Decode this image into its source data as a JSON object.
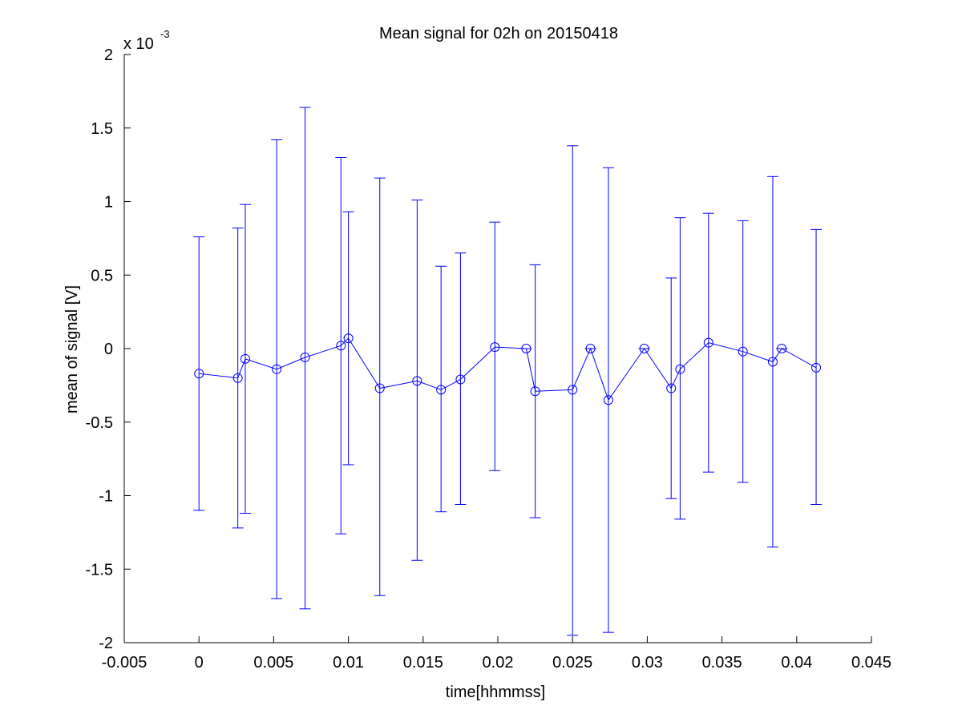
{
  "chart_data": {
    "type": "line",
    "title": "Mean signal for 02h on 20150418",
    "xlabel": "time[hhmmss]",
    "ylabel": "mean of signal [V]",
    "y_multiplier": {
      "base": "x 10",
      "exponent": "-3"
    },
    "xlim": [
      -0.005,
      0.045
    ],
    "ylim": [
      -2,
      2
    ],
    "x_ticks": [
      "-0.005",
      "0",
      "0.005",
      "0.01",
      "0.015",
      "0.02",
      "0.025",
      "0.03",
      "0.035",
      "0.04",
      "0.045"
    ],
    "y_ticks": [
      "-2",
      "-1.5",
      "-1",
      "-0.5",
      "0",
      "0.5",
      "1",
      "1.5",
      "2"
    ],
    "grid": false,
    "colors": {
      "series": "#0000ff",
      "axes": "#000000"
    },
    "marker": "circle",
    "series": [
      {
        "x": [
          0,
          0.0026,
          0.0031,
          0.0052,
          0.0071,
          0.0095,
          0.01,
          0.0121,
          0.0146,
          0.0162,
          0.0175,
          0.0198,
          0.0219,
          0.0225,
          0.025,
          0.0262,
          0.0274,
          0.0298,
          0.0316,
          0.0322,
          0.0341,
          0.0364,
          0.0384,
          0.039,
          0.0413
        ],
        "y": [
          -0.17,
          -0.2,
          -0.07,
          -0.14,
          -0.06,
          0.02,
          0.07,
          -0.27,
          -0.22,
          -0.28,
          -0.21,
          0.01,
          0.0,
          -0.29,
          -0.28,
          0.0,
          -0.35,
          0.0,
          -0.27,
          -0.14,
          0.04,
          -0.02,
          -0.09,
          0.0,
          -0.13
        ],
        "upper": [
          0.76,
          0.82,
          0.98,
          1.42,
          1.64,
          1.3,
          0.93,
          1.16,
          1.01,
          0.56,
          0.65,
          0.86,
          0.0,
          0.57,
          1.38,
          0.0,
          1.23,
          0.0,
          0.48,
          0.89,
          0.92,
          0.87,
          1.17,
          0.0,
          0.81
        ],
        "lower": [
          -1.1,
          -1.22,
          -1.12,
          -1.7,
          -1.77,
          -1.26,
          -0.79,
          -1.68,
          -1.44,
          -1.11,
          -1.06,
          -0.83,
          0.0,
          -1.15,
          -1.95,
          0.0,
          -1.93,
          0.0,
          -1.02,
          -1.16,
          -0.84,
          -0.91,
          -1.35,
          0.0,
          -1.06
        ]
      }
    ]
  }
}
